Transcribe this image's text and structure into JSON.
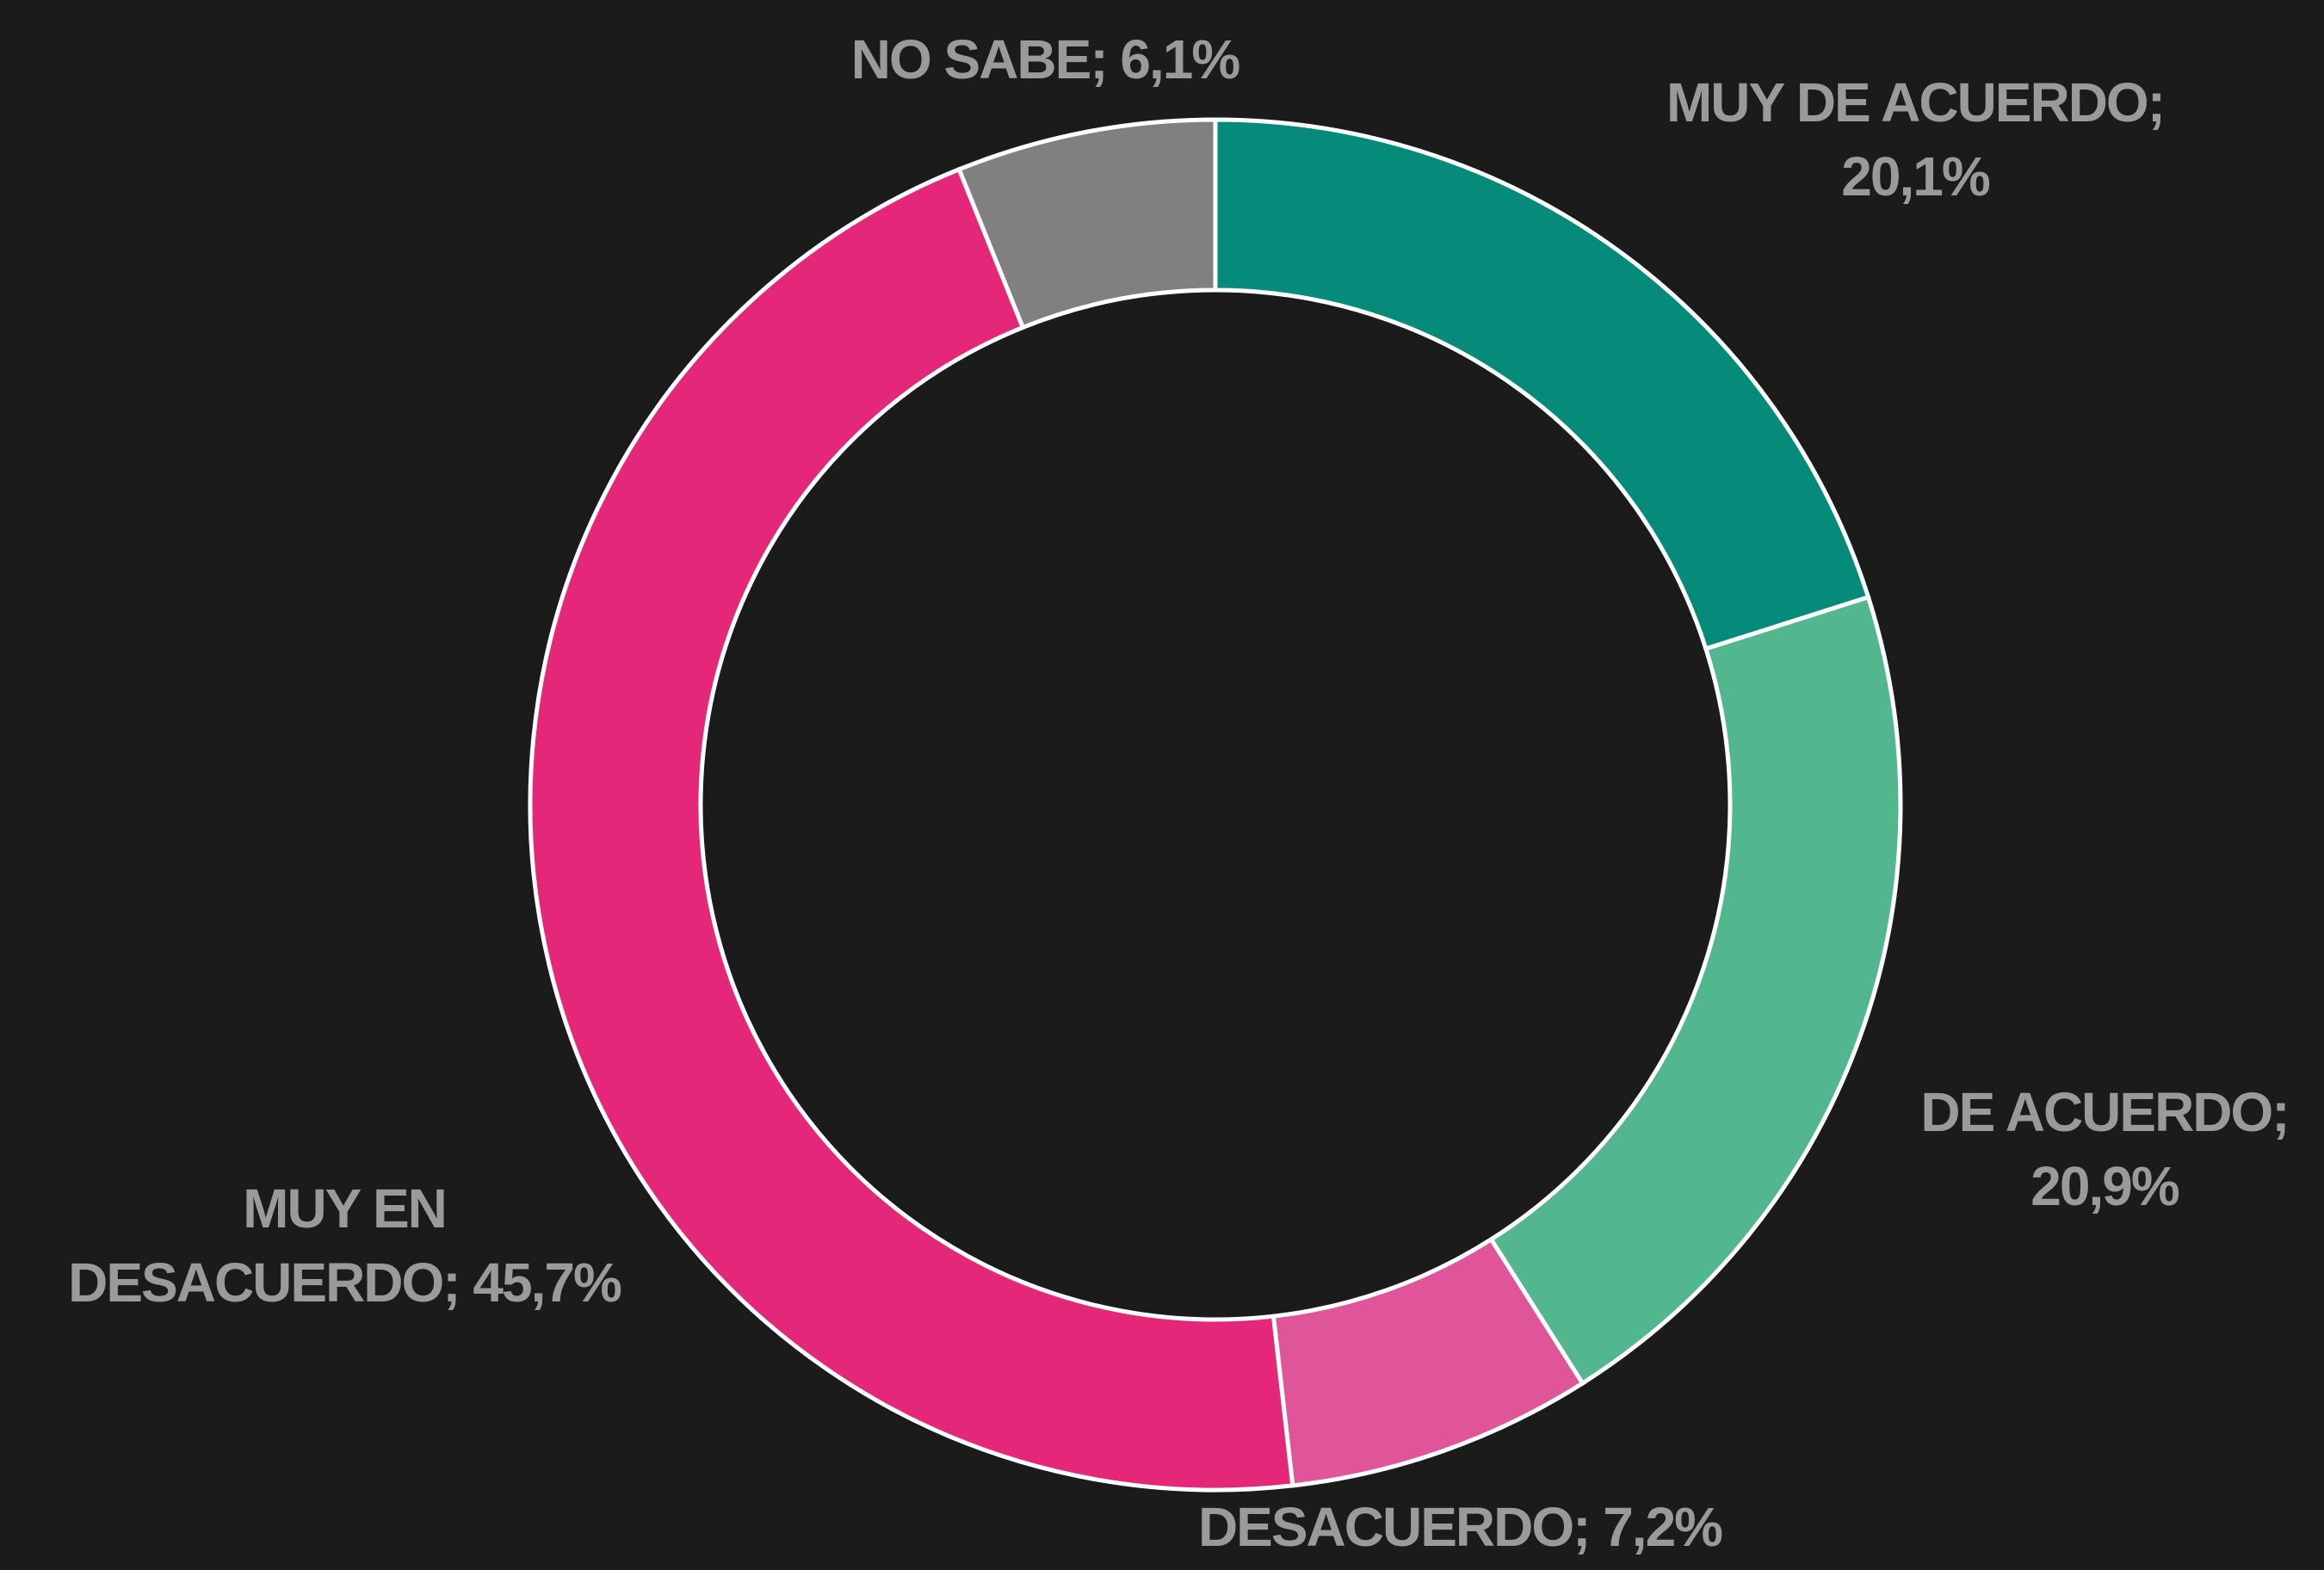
{
  "chart_data": {
    "type": "donut",
    "values": [
      20.1,
      20.9,
      7.2,
      45.7,
      6.1
    ],
    "value_labels": [
      [
        "MUY DE ACUERDO;",
        "20,1%"
      ],
      [
        "DE ACUERDO;",
        "20,9%"
      ],
      [
        "DESACUERDO; 7,2%"
      ],
      [
        "MUY EN",
        "DESACUERDO; 45,7%"
      ],
      [
        "NO SABE; 6,1%"
      ]
    ],
    "colors": [
      "#068a7a",
      "#52b68f",
      "#e05599",
      "#e5277a",
      "#808080"
    ]
  }
}
